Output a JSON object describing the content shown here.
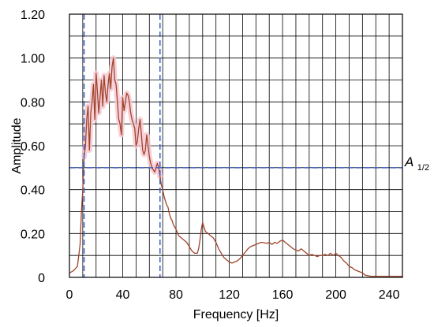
{
  "chart_data": {
    "type": "line",
    "xlabel": "Frequency [Hz]",
    "ylabel": "Amplitude",
    "xlim": [
      0,
      250
    ],
    "ylim": [
      0,
      1.2
    ],
    "x_ticks": [
      0,
      40,
      80,
      120,
      160,
      200,
      240
    ],
    "y_ticks": [
      0,
      0.2,
      0.4,
      0.6,
      0.8,
      1.0,
      1.2
    ],
    "y_tick_labels": [
      "0",
      "0.20",
      "0.40",
      "0.60",
      "0.80",
      "1.00",
      "1.20"
    ],
    "grid": true,
    "line_color": "#a0442c",
    "band_color": "#f7c9d2",
    "guide_color": "#3b5fc8",
    "half_amplitude_level": 0.5,
    "half_amplitude_label_main": "A",
    "half_amplitude_label_sub": "1/2",
    "band_limits_x": [
      11,
      68
    ],
    "series": [
      {
        "x": [
          0,
          3,
          6,
          8,
          9,
          10,
          11,
          12,
          13,
          14,
          15,
          16,
          17,
          18,
          19,
          20,
          21,
          22,
          23,
          24,
          25,
          26,
          27,
          28,
          29,
          30,
          31,
          32,
          33,
          34,
          35,
          36,
          37,
          38,
          39,
          40,
          41,
          42,
          43,
          44,
          45,
          46,
          47,
          48,
          49,
          50,
          51,
          52,
          53,
          54,
          55,
          56,
          57,
          58,
          59,
          60,
          61,
          62,
          63,
          64,
          65,
          66,
          67,
          68,
          69,
          70,
          71,
          72,
          73,
          74,
          75,
          76,
          77,
          78,
          80,
          82,
          84,
          86,
          88,
          90,
          92,
          94,
          96,
          97,
          98,
          99,
          100,
          101,
          102,
          104,
          106,
          108,
          110,
          112,
          114,
          116,
          118,
          120,
          122,
          124,
          126,
          128,
          130,
          132,
          134,
          136,
          138,
          140,
          142,
          144,
          146,
          148,
          150,
          152,
          154,
          156,
          158,
          160,
          162,
          164,
          166,
          168,
          170,
          172,
          174,
          176,
          178,
          180,
          182,
          184,
          186,
          188,
          190,
          192,
          194,
          196,
          198,
          200,
          202,
          204,
          206,
          208,
          210,
          212,
          214,
          216,
          218,
          220,
          222,
          224,
          226,
          230,
          235,
          240,
          245,
          250
        ],
        "y": [
          0.02,
          0.03,
          0.05,
          0.15,
          0.3,
          0.4,
          0.55,
          0.6,
          0.72,
          0.78,
          0.58,
          0.75,
          0.8,
          0.88,
          0.72,
          0.93,
          0.85,
          0.75,
          0.82,
          0.9,
          0.78,
          0.92,
          0.84,
          0.8,
          0.88,
          0.93,
          0.86,
          0.96,
          1.0,
          0.9,
          0.88,
          0.8,
          0.72,
          0.7,
          0.65,
          0.82,
          0.76,
          0.8,
          0.84,
          0.83,
          0.8,
          0.75,
          0.72,
          0.7,
          0.68,
          0.6,
          0.62,
          0.68,
          0.72,
          0.65,
          0.58,
          0.56,
          0.58,
          0.65,
          0.6,
          0.55,
          0.52,
          0.5,
          0.49,
          0.48,
          0.5,
          0.52,
          0.5,
          0.46,
          0.42,
          0.4,
          0.37,
          0.35,
          0.33,
          0.32,
          0.29,
          0.27,
          0.26,
          0.24,
          0.22,
          0.19,
          0.18,
          0.17,
          0.16,
          0.14,
          0.12,
          0.11,
          0.11,
          0.13,
          0.17,
          0.22,
          0.25,
          0.23,
          0.21,
          0.2,
          0.19,
          0.18,
          0.16,
          0.13,
          0.11,
          0.09,
          0.08,
          0.07,
          0.065,
          0.07,
          0.075,
          0.085,
          0.1,
          0.115,
          0.13,
          0.14,
          0.145,
          0.15,
          0.155,
          0.16,
          0.158,
          0.155,
          0.16,
          0.15,
          0.16,
          0.155,
          0.165,
          0.17,
          0.16,
          0.15,
          0.14,
          0.13,
          0.125,
          0.12,
          0.13,
          0.12,
          0.11,
          0.1,
          0.105,
          0.1,
          0.095,
          0.1,
          0.1,
          0.105,
          0.1,
          0.11,
          0.1,
          0.11,
          0.1,
          0.09,
          0.075,
          0.065,
          0.05,
          0.045,
          0.035,
          0.03,
          0.025,
          0.02,
          0.01,
          0.008,
          0.005,
          0.005,
          0.005,
          0.005,
          0.005,
          0.005
        ]
      }
    ]
  }
}
